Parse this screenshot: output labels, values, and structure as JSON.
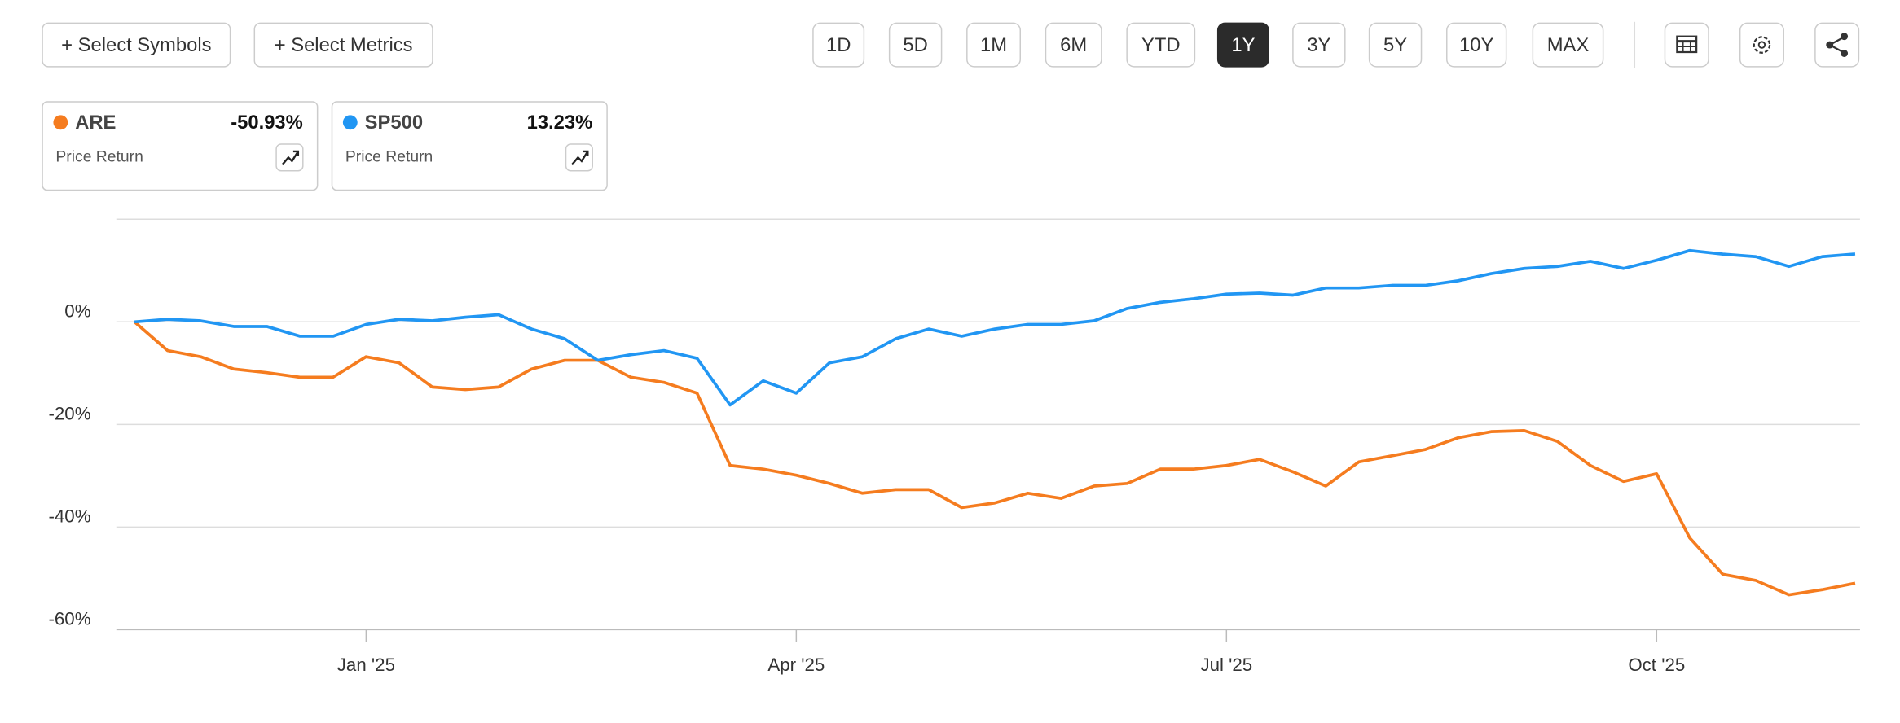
{
  "toolbar": {
    "buttons": [
      "+ Select Symbols",
      "+ Select Metrics"
    ],
    "ranges": [
      "1D",
      "5D",
      "1M",
      "6M",
      "YTD",
      "1Y",
      "3Y",
      "5Y",
      "10Y",
      "MAX"
    ],
    "active_range": "1Y"
  },
  "legend_cards": [
    {
      "change": "-50.93%",
      "metric": "Price Return"
    },
    {
      "change": "13.23%",
      "metric": "Price Return"
    }
  ],
  "chart_data": {
    "type": "line",
    "categories": [
      null,
      null,
      null,
      null,
      null,
      null,
      null,
      "Jan '25",
      null,
      null,
      null,
      null,
      null,
      null,
      null,
      null,
      null,
      null,
      null,
      null,
      "Apr '25",
      null,
      null,
      null,
      null,
      null,
      null,
      null,
      null,
      null,
      null,
      null,
      null,
      "Jul '25",
      null,
      null,
      null,
      null,
      null,
      null,
      null,
      null,
      null,
      null,
      null,
      null,
      "Oct '25",
      null,
      null,
      null,
      null,
      null,
      null
    ],
    "series": [
      {
        "name": "ARE",
        "color": "#f57c1f",
        "values": [
          0,
          -5.6,
          -6.8,
          -9.2,
          -9.9,
          -10.8,
          -10.8,
          -6.8,
          -8,
          -12.7,
          -13.2,
          -12.7,
          -9.2,
          -7.5,
          -7.5,
          -10.8,
          -11.8,
          -13.9,
          -28,
          -28.7,
          -29.9,
          -31.5,
          -33.4,
          -32.7,
          -32.7,
          -36.2,
          -35.3,
          -33.4,
          -34.4,
          -32,
          -31.5,
          -28.7,
          -28.7,
          -28,
          -26.8,
          -29.2,
          -32,
          -27.3,
          -26.1,
          -24.9,
          -22.6,
          -21.4,
          -21.2,
          -23.3,
          -28,
          -31.1,
          -29.6,
          -42.1,
          -49.2,
          -50.4,
          -53.2,
          -52.2,
          -50.93
        ]
      },
      {
        "name": "SP500",
        "color": "#2196f3",
        "values": [
          0,
          0.5,
          0.2,
          -0.9,
          -0.9,
          -2.8,
          -2.8,
          -0.5,
          0.5,
          0.2,
          0.9,
          1.4,
          -1.4,
          -3.3,
          -7.5,
          -6.4,
          -5.6,
          -7.1,
          -16.2,
          -11.5,
          -13.9,
          -8,
          -6.8,
          -3.3,
          -1.4,
          -2.8,
          -1.4,
          -0.5,
          -0.5,
          0.2,
          2.6,
          3.8,
          4.5,
          5.4,
          5.6,
          5.2,
          6.6,
          6.6,
          7.1,
          7.1,
          8,
          9.4,
          10.4,
          10.8,
          11.8,
          10.4,
          12,
          13.9,
          13.2,
          12.7,
          10.8,
          12.7,
          13.23
        ]
      }
    ],
    "ylim": [
      -60,
      20
    ],
    "yticks": [
      {
        "value": -60,
        "label": "-60%"
      },
      {
        "value": -40,
        "label": "-40%"
      },
      {
        "value": -20,
        "label": "-20%"
      },
      {
        "value": 0,
        "label": "0%"
      }
    ],
    "grid": true
  }
}
